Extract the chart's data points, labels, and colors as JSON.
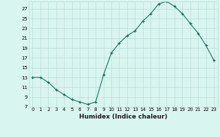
{
  "x": [
    0,
    1,
    2,
    3,
    4,
    5,
    6,
    7,
    8,
    9,
    10,
    11,
    12,
    13,
    14,
    15,
    16,
    17,
    18,
    19,
    20,
    21,
    22,
    23
  ],
  "y": [
    13,
    13,
    12,
    10.5,
    9.5,
    8.5,
    8,
    7.5,
    8,
    13.5,
    18,
    20,
    21.5,
    22.5,
    24.5,
    26,
    28,
    28.5,
    27.5,
    26,
    24,
    22,
    19.5,
    16.5
  ],
  "line_color": "#1a6b5a",
  "marker": "+",
  "bg_color": "#d9f5f0",
  "grid_color": "#b8ddd8",
  "xlabel": "Humidex (Indice chaleur)",
  "ylabel_ticks": [
    7,
    9,
    11,
    13,
    15,
    17,
    19,
    21,
    23,
    25,
    27
  ],
  "xlim": [
    -0.5,
    23.5
  ],
  "ylim": [
    7,
    28.5
  ],
  "tick_fontsize": 5.0,
  "xlabel_fontsize": 6.5
}
